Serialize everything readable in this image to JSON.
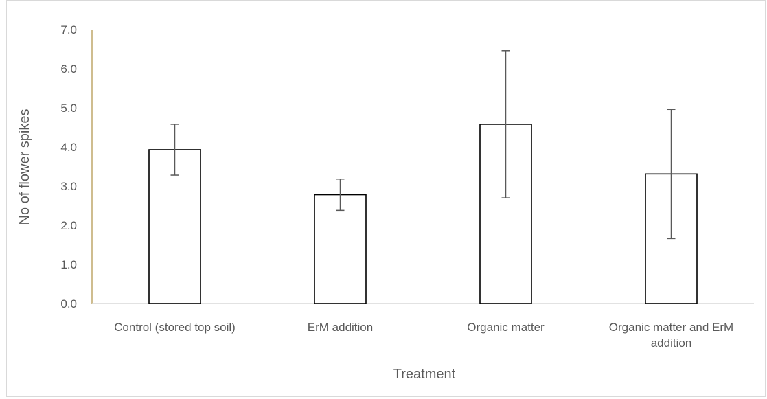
{
  "chart_data": {
    "type": "bar",
    "title": "",
    "xlabel": "Treatment",
    "ylabel": "No of flower spikes",
    "categories": [
      [
        "Control (stored top soil)"
      ],
      [
        "ErM addition"
      ],
      [
        "Organic matter"
      ],
      [
        "Organic matter and ErM",
        "addition"
      ]
    ],
    "values": [
      3.93,
      2.78,
      4.58,
      3.31
    ],
    "error_bars": [
      0.65,
      0.4,
      1.88,
      1.65
    ],
    "ylim": [
      0,
      7
    ],
    "yticks": [
      "0.0",
      "1.0",
      "2.0",
      "3.0",
      "4.0",
      "5.0",
      "6.0",
      "7.0"
    ],
    "grid": false,
    "legend": "none",
    "colors": {
      "bar_fill": "#ffffff",
      "bar_stroke": "#000000",
      "error_bar": "#595959",
      "y_axis": "#bfa76a",
      "x_axis": "#d9d9d9",
      "text": "#595959"
    }
  }
}
